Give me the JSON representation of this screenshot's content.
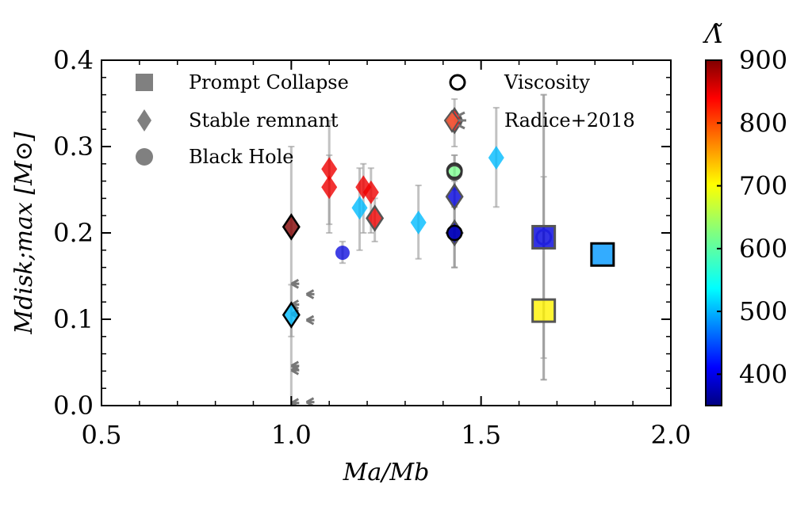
{
  "chart_data": {
    "type": "scatter",
    "xlabel": "Ma/Mb",
    "ylabel": "Mdisk;max [M⊙]",
    "xlim": [
      0.5,
      2.0
    ],
    "ylim": [
      0.0,
      0.4
    ],
    "x_ticks": [
      "0.5",
      "1.0",
      "1.5",
      "2.0"
    ],
    "y_ticks": [
      "0.0",
      "0.1",
      "0.2",
      "0.3",
      "0.4"
    ],
    "colorbar": {
      "title": "Λ̃",
      "range": [
        350,
        900
      ],
      "ticks": [
        "400",
        "500",
        "600",
        "700",
        "800",
        "900"
      ],
      "colormap": "jet"
    },
    "legend": {
      "placement": "top",
      "entries": [
        {
          "label": "Prompt Collapse",
          "marker": "square"
        },
        {
          "label": "Stable remnant",
          "marker": "diamond"
        },
        {
          "label": "Black Hole",
          "marker": "circle"
        },
        {
          "label": "Viscosity",
          "marker": "open-circle"
        },
        {
          "label": "Radice+2018",
          "marker": "tri"
        }
      ]
    },
    "points": [
      {
        "x": 1.0,
        "y": 0.207,
        "lambda": 900,
        "marker": "diamond",
        "edge": "#000000",
        "err": [
          0.08,
          0.3
        ]
      },
      {
        "x": 1.0,
        "y": 0.105,
        "lambda": 520,
        "marker": "diamond",
        "edge": "#000000",
        "err": [
          0.0,
          0.14
        ]
      },
      {
        "x": 1.1,
        "y": 0.274,
        "lambda": 840,
        "marker": "diamond",
        "edge": "none",
        "err": [
          0.21,
          0.33
        ]
      },
      {
        "x": 1.1,
        "y": 0.253,
        "lambda": 840,
        "marker": "diamond",
        "edge": "none",
        "err": [
          0.2,
          0.29
        ]
      },
      {
        "x": 1.135,
        "y": 0.177,
        "lambda": 400,
        "marker": "circle",
        "edge": "none",
        "err": [
          0.165,
          0.19
        ]
      },
      {
        "x": 1.18,
        "y": 0.229,
        "lambda": 520,
        "marker": "diamond",
        "edge": "none",
        "err": [
          0.18,
          0.275
        ]
      },
      {
        "x": 1.19,
        "y": 0.253,
        "lambda": 840,
        "marker": "diamond",
        "edge": "none",
        "err": [
          0.2,
          0.28
        ]
      },
      {
        "x": 1.21,
        "y": 0.247,
        "lambda": 840,
        "marker": "diamond",
        "edge": "none",
        "err": [
          0.2,
          0.275
        ]
      },
      {
        "x": 1.22,
        "y": 0.217,
        "lambda": 840,
        "marker": "diamond",
        "edge": "#555555",
        "err": [
          0.19,
          0.24
        ]
      },
      {
        "x": 1.335,
        "y": 0.212,
        "lambda": 520,
        "marker": "diamond",
        "edge": "none",
        "err": [
          0.17,
          0.255
        ]
      },
      {
        "x": 1.43,
        "y": 0.33,
        "lambda": 830,
        "marker": "diamond",
        "edge": "#555555",
        "err": [
          0.3,
          0.355
        ]
      },
      {
        "x": 1.43,
        "y": 0.27,
        "lambda": 620,
        "marker": "circle",
        "edge": "#444444",
        "err": [
          0.25,
          0.29
        ]
      },
      {
        "x": 1.43,
        "y": 0.272,
        "lambda": 500,
        "marker": "open-circle",
        "edge": "#333333",
        "err": [
          0.25,
          0.29
        ]
      },
      {
        "x": 1.43,
        "y": 0.242,
        "lambda": 400,
        "marker": "diamond",
        "edge": "#555555",
        "err": [
          0.16,
          0.26
        ]
      },
      {
        "x": 1.43,
        "y": 0.2,
        "lambda": 380,
        "marker": "diamond",
        "edge": "#555555",
        "err": [
          0.16,
          0.23
        ]
      },
      {
        "x": 1.43,
        "y": 0.2,
        "lambda": 380,
        "marker": "circle",
        "edge": "#000000",
        "err": [
          0.16,
          0.23
        ]
      },
      {
        "x": 1.54,
        "y": 0.287,
        "lambda": 520,
        "marker": "diamond",
        "edge": "none",
        "err": [
          0.23,
          0.345
        ]
      },
      {
        "x": 1.665,
        "y": 0.195,
        "lambda": 400,
        "marker": "square",
        "edge": "#555555",
        "err": [
          0.03,
          0.36
        ]
      },
      {
        "x": 1.665,
        "y": 0.195,
        "lambda": 400,
        "marker": "open-circle",
        "edge": "#2020dd",
        "err": [
          0.03,
          0.36
        ]
      },
      {
        "x": 1.665,
        "y": 0.11,
        "lambda": 700,
        "marker": "square",
        "edge": "#555555",
        "err": [
          0.055,
          0.265
        ]
      },
      {
        "x": 1.82,
        "y": 0.175,
        "lambda": 500,
        "marker": "square",
        "edge": "#000000",
        "err": null
      }
    ],
    "radice_points": [
      {
        "x": 1.0,
        "y": 0.141
      },
      {
        "x": 1.0,
        "y": 0.117
      },
      {
        "x": 1.0,
        "y": 0.106
      },
      {
        "x": 1.0,
        "y": 0.046
      },
      {
        "x": 1.0,
        "y": 0.041
      },
      {
        "x": 1.0,
        "y": 0.003
      },
      {
        "x": 1.04,
        "y": 0.129
      },
      {
        "x": 1.04,
        "y": 0.099
      },
      {
        "x": 1.04,
        "y": 0.004
      },
      {
        "x": 1.43,
        "y": 0.33
      }
    ]
  }
}
